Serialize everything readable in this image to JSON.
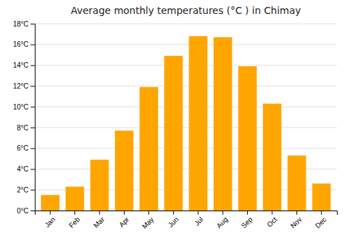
{
  "chart_data": {
    "type": "bar",
    "title": "Average monthly temperatures (°C ) in Chimay",
    "categories": [
      "Jan",
      "Feb",
      "Mar",
      "Apr",
      "May",
      "Jun",
      "Jul",
      "Aug",
      "Sep",
      "Oct",
      "Nov",
      "Dec"
    ],
    "values": [
      1.5,
      2.3,
      4.9,
      7.7,
      11.9,
      14.9,
      16.8,
      16.7,
      13.9,
      10.3,
      5.3,
      2.6
    ],
    "color": "#FFA500",
    "ylim": [
      0,
      18
    ],
    "yticks": [
      {
        "value": 0,
        "label": "0°C"
      },
      {
        "value": 2,
        "label": "2°C"
      },
      {
        "value": 4,
        "label": "4°C"
      },
      {
        "value": 6,
        "label": "6°C"
      },
      {
        "value": 8,
        "label": "8°C"
      },
      {
        "value": 10,
        "label": "10°C"
      },
      {
        "value": 12,
        "label": "12°C"
      },
      {
        "value": 14,
        "label": "14°C"
      },
      {
        "value": 16,
        "label": "16°C"
      },
      {
        "value": 18,
        "label": "18°C"
      }
    ],
    "grid": true
  }
}
